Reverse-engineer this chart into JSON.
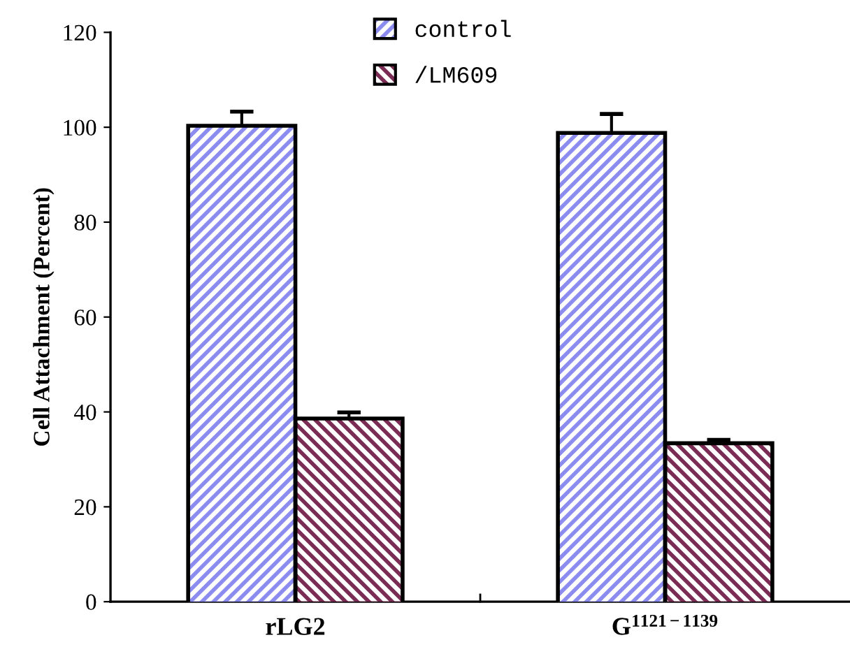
{
  "chart_data": {
    "type": "bar",
    "ylabel": "Cell Attachment (Percent)",
    "categories": [
      "rLG2",
      "G$^{1121−1139}$"
    ],
    "series": [
      {
        "name": "control",
        "color": "#8c8cf0",
        "values": [
          100.3,
          98.8
        ],
        "errors": [
          3,
          4
        ]
      },
      {
        "name": "/LM609",
        "color": "#7a2c55",
        "values": [
          38.6,
          33.4
        ],
        "errors": [
          1.3,
          0.7
        ]
      }
    ],
    "ylim": [
      0,
      120
    ],
    "yticks": [
      0,
      20,
      40,
      60,
      80,
      100,
      120
    ],
    "grid": false,
    "legend": "top"
  }
}
